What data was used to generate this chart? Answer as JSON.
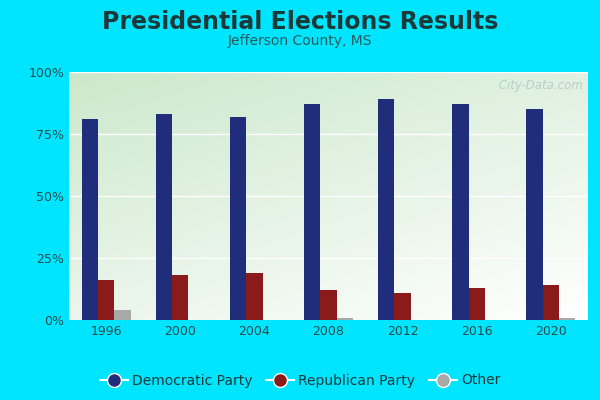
{
  "title": "Presidential Elections Results",
  "subtitle": "Jefferson County, MS",
  "years": [
    1996,
    2000,
    2004,
    2008,
    2012,
    2016,
    2020
  ],
  "democratic": [
    81,
    83,
    82,
    87,
    89,
    87,
    85
  ],
  "republican": [
    16,
    18,
    19,
    12,
    11,
    13,
    14
  ],
  "other": [
    4,
    0,
    0,
    1,
    0,
    0,
    1
  ],
  "dem_color": "#1f2d7b",
  "rep_color": "#8b1a1a",
  "other_color": "#a8a8a8",
  "bg_outer": "#00e5ff",
  "bg_chart_top_left": "#d4edda",
  "bg_chart_bottom": "#f0f8f0",
  "yticks": [
    0,
    25,
    50,
    75,
    100
  ],
  "ytick_labels": [
    "0%",
    "25%",
    "50%",
    "75%",
    "100%"
  ],
  "bar_width": 0.22,
  "watermark": " City-Data.com",
  "title_fontsize": 17,
  "subtitle_fontsize": 10,
  "legend_fontsize": 10,
  "tick_fontsize": 9,
  "title_color": "#1a3a3a",
  "subtitle_color": "#2a5a5a",
  "tick_color": "#2a4a4a"
}
